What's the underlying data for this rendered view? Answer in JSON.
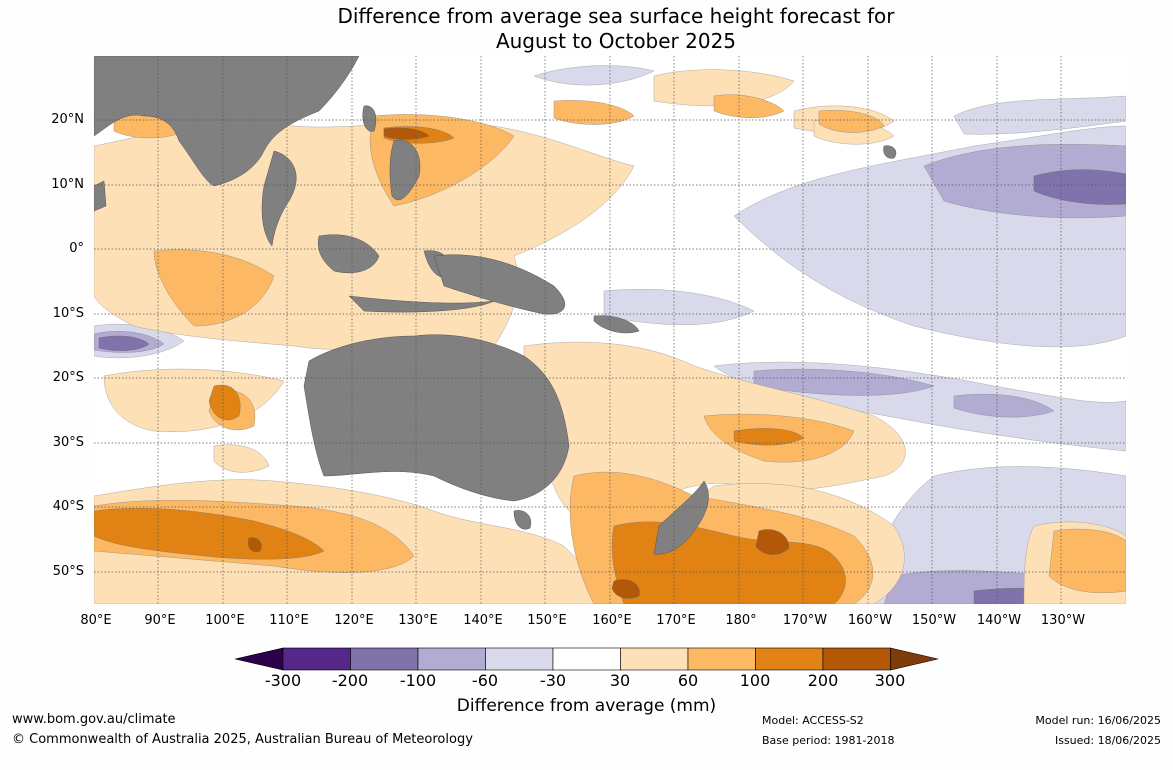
{
  "title": {
    "line1": "Difference from average sea surface height forecast for",
    "line2": "August to October 2025"
  },
  "map": {
    "lat_labels": [
      "20°N",
      "10°N",
      "0°",
      "10°S",
      "20°S",
      "30°S",
      "40°S",
      "50°S"
    ],
    "lon_labels": [
      "80°E",
      "90°E",
      "100°E",
      "110°E",
      "120°E",
      "130°E",
      "140°E",
      "150°E",
      "160°E",
      "170°E",
      "180°",
      "170°W",
      "160°W",
      "150°W",
      "140°W",
      "130°W"
    ],
    "colors": {
      "land": "#808080",
      "orange_strong": "#e08214",
      "orange_mid": "#fdb863",
      "orange_light": "#fee0b6",
      "purple_light": "#d8daeb",
      "purple_mid": "#b2abd2",
      "purple_strong": "#8073ac",
      "brown": "#b35806"
    }
  },
  "colorbar": {
    "ticks": [
      "-300",
      "-200",
      "-100",
      "-60",
      "-30",
      "30",
      "60",
      "100",
      "200",
      "300"
    ],
    "colors": [
      "#2d004b",
      "#542788",
      "#8073ac",
      "#b2abd2",
      "#d8daeb",
      "#ffffff",
      "#fee0b6",
      "#fdb863",
      "#e08214",
      "#b35806",
      "#7f3b08"
    ],
    "title": "Difference from average (mm)"
  },
  "footer": {
    "website": "www.bom.gov.au/climate",
    "copyright": "© Commonwealth of Australia 2025, Australian Bureau of Meteorology",
    "model": "Model: ACCESS-S2",
    "base_period": "Base period: 1981-2018",
    "model_run": "Model run: 16/06/2025",
    "issued": "Issued: 18/06/2025"
  }
}
